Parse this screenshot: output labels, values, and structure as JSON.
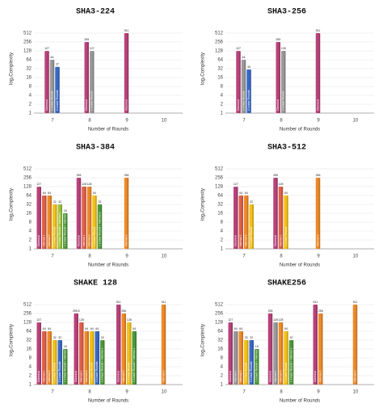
{
  "chart_data": [
    {
      "type": "bar",
      "title": "SHA3-224",
      "x_label": "Number of Rounds",
      "y_label": "log₂Complexity",
      "log_scale": true,
      "grid": true,
      "categories": [
        "7",
        "8",
        "9",
        "10"
      ],
      "ylim": [
        1,
        1024
      ],
      "yticks": [
        1,
        2,
        4,
        8,
        16,
        32,
        64,
        128,
        256,
        512
      ],
      "series": [
        {
          "name": "Classical",
          "color": "#b8437a",
          "values": [
            127,
            255,
            511,
            null
          ]
        },
        {
          "name": "1 Linear Round",
          "color": "#9a9a9a",
          "values": [
            64,
            127,
            null,
            null
          ]
        },
        {
          "name": "2 Linear Rounds",
          "color": "#3a6ac8",
          "values": [
            37,
            null,
            null,
            null
          ]
        }
      ]
    },
    {
      "type": "bar",
      "title": "SHA3-256",
      "x_label": "Number of Rounds",
      "y_label": "log₂Complexity",
      "log_scale": true,
      "grid": true,
      "categories": [
        "7",
        "8",
        "9",
        "10"
      ],
      "ylim": [
        1,
        1024
      ],
      "yticks": [
        1,
        2,
        4,
        8,
        16,
        32,
        64,
        128,
        256,
        512
      ],
      "series": [
        {
          "name": "Classical",
          "color": "#b8437a",
          "values": [
            127,
            255,
            511,
            null
          ]
        },
        {
          "name": "1 Linear Round",
          "color": "#9a9a9a",
          "values": [
            64,
            128,
            null,
            null
          ]
        },
        {
          "name": "2 Linear Rounds",
          "color": "#3a6ac8",
          "values": [
            30,
            null,
            null,
            null
          ]
        }
      ]
    },
    {
      "type": "bar",
      "title": "SHA3-384",
      "x_label": "Number of Rounds",
      "y_label": "log₂Complexity",
      "log_scale": true,
      "grid": true,
      "categories": [
        "7",
        "8",
        "9",
        "10"
      ],
      "ylim": [
        1,
        1024
      ],
      "yticks": [
        1,
        2,
        4,
        8,
        16,
        32,
        64,
        128,
        256,
        512
      ],
      "series": [
        {
          "name": "Classical",
          "color": "#b8437a",
          "values": [
            127,
            255,
            null,
            null
          ]
        },
        {
          "name": "Internal 1",
          "color": "#e0604a",
          "values": [
            64,
            128,
            null,
            null
          ]
        },
        {
          "name": "Internal 2",
          "color": "#ee8a2a",
          "values": [
            64,
            128,
            256,
            null
          ]
        },
        {
          "name": "1 Linear Round",
          "color": "#f2c21a",
          "values": [
            32,
            64,
            null,
            null
          ]
        },
        {
          "name": "1 Linear Round + Internal 1",
          "color": "#9cc43a",
          "values": [
            32,
            null,
            null,
            null
          ]
        },
        {
          "name": "1 Linear Round + Internal 2",
          "color": "#4e9a3a",
          "values": [
            16,
            32,
            null,
            null
          ]
        }
      ]
    },
    {
      "type": "bar",
      "title": "SHA3-512",
      "x_label": "Number of Rounds",
      "y_label": "log₂Complexity",
      "log_scale": true,
      "grid": true,
      "categories": [
        "7",
        "8",
        "9",
        "10"
      ],
      "ylim": [
        1,
        1024
      ],
      "yticks": [
        1,
        2,
        4,
        8,
        16,
        32,
        64,
        128,
        256,
        512
      ],
      "series": [
        {
          "name": "Classical",
          "color": "#b8437a",
          "values": [
            127,
            255,
            null,
            null
          ]
        },
        {
          "name": "Internal 1",
          "color": "#e0604a",
          "values": [
            64,
            128,
            null,
            null
          ]
        },
        {
          "name": "Internal 2",
          "color": "#ee8a2a",
          "values": [
            64,
            null,
            256,
            null
          ]
        },
        {
          "name": "1 Linear Round",
          "color": "#f2c21a",
          "values": [
            32,
            64,
            null,
            null
          ]
        }
      ]
    },
    {
      "type": "bar",
      "title": "SHAKE 128",
      "x_label": "Number of Rounds",
      "y_label": "log₂Complexity",
      "log_scale": true,
      "grid": true,
      "categories": [
        "7",
        "8",
        "9",
        "10"
      ],
      "ylim": [
        1,
        1024
      ],
      "yticks": [
        1,
        2,
        4,
        8,
        16,
        32,
        64,
        128,
        256,
        512
      ],
      "series": [
        {
          "name": "Classical",
          "color": "#b8437a",
          "values": [
            127,
            255.5,
            511,
            null
          ]
        },
        {
          "name": "Internal 1",
          "color": "#e0604a",
          "values": [
            64,
            128,
            null,
            null
          ]
        },
        {
          "name": "Internal 2",
          "color": "#ee8a2a",
          "values": [
            64,
            64,
            256,
            511
          ]
        },
        {
          "name": "1 Linear Round",
          "color": "#f2c21a",
          "values": [
            32,
            64,
            128,
            null
          ]
        },
        {
          "name": "2 Linear Rounds",
          "color": "#3a6ac8",
          "values": [
            32,
            64,
            null,
            null
          ]
        },
        {
          "name": "1 Linear Round + Internal 1",
          "color": "#4e9a3a",
          "values": [
            16,
            32,
            64,
            null
          ]
        }
      ]
    },
    {
      "type": "bar",
      "title": "SHAKE256",
      "x_label": "Number of Rounds",
      "y_label": "log₂Complexity",
      "log_scale": true,
      "grid": true,
      "categories": [
        "7",
        "8",
        "9",
        "10"
      ],
      "ylim": [
        1,
        1024
      ],
      "yticks": [
        1,
        2,
        4,
        8,
        16,
        32,
        64,
        128,
        256,
        512
      ],
      "series": [
        {
          "name": "Classical",
          "color": "#b8437a",
          "values": [
            127,
            255,
            511,
            null
          ]
        },
        {
          "name": "Internal 1",
          "color": "#9a9a9a",
          "values": [
            64,
            128,
            null,
            null
          ]
        },
        {
          "name": "Internal 2",
          "color": "#ee8a2a",
          "values": [
            64,
            128,
            256,
            511
          ]
        },
        {
          "name": "1 Linear Round",
          "color": "#f2c21a",
          "values": [
            32,
            64,
            null,
            null
          ]
        },
        {
          "name": "2 Linear Rounds",
          "color": "#3a6ac8",
          "values": [
            32,
            null,
            null,
            null
          ]
        },
        {
          "name": "1 Linear Round + Internal 1",
          "color": "#4e9a3a",
          "values": [
            16,
            32,
            null,
            null
          ]
        }
      ]
    }
  ]
}
